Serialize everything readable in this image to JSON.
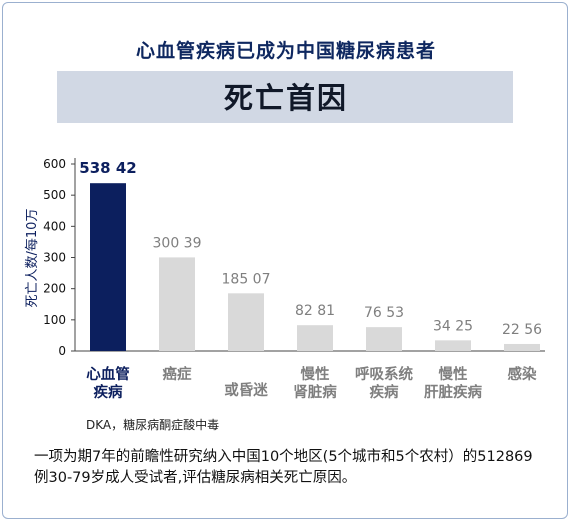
{
  "header": {
    "title": "心血管疾病已成为中国糖尿病患者",
    "subtitle": "死亡首因"
  },
  "chart_data": {
    "type": "bar",
    "ylabel": "死亡人数/每10万",
    "ylim": [
      0,
      600
    ],
    "yticks": [
      0,
      100,
      200,
      300,
      400,
      500,
      600
    ],
    "categories": [
      [
        "心血管",
        "疾病"
      ],
      [
        "癌症"
      ],
      [
        "或昏迷"
      ],
      [
        "慢性",
        "肾脏病"
      ],
      [
        "呼吸系统",
        "疾病"
      ],
      [
        "慢性",
        "肝脏疾病"
      ],
      [
        "感染"
      ]
    ],
    "values": [
      538.42,
      300.39,
      185.07,
      82.81,
      76.53,
      34.25,
      22.56
    ],
    "value_labels": [
      "538 42",
      "300 39",
      "185 07",
      "82 81",
      "76 53",
      "34 25",
      "22 56"
    ],
    "colors": {
      "highlight": "#0c1f5e",
      "default": "#d9d9d9",
      "highlight_label": "#0c1f5e",
      "default_label": "#7f7f7f",
      "axis": "#444444"
    }
  },
  "footnote": "DKA，糖尿病酮症酸中毒",
  "description": "一项为期7年的前瞻性研究纳入中国10个地区(5个城市和5个农村）的512869例30-79岁成人受试者,评估糖尿病相关死亡原因。"
}
